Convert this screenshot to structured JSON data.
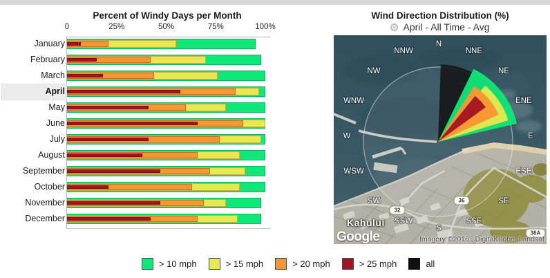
{
  "bar_chart": {
    "title": "Percent of Windy Days per Month",
    "tick_labels": [
      "0",
      "25%",
      "50%",
      "75%",
      "100%"
    ],
    "selected_month": "April"
  },
  "wind_map": {
    "title": "Wind Direction Distribution (%)",
    "selector_label": "April - All Time - Avg",
    "compass_labels": [
      "N",
      "NNE",
      "NE",
      "ENE",
      "E",
      "ESE",
      "SE",
      "SSE",
      "S",
      "SSW",
      "SW",
      "WSW",
      "W",
      "WNW",
      "NW",
      "NNW"
    ],
    "place_label": "Kahului",
    "road_labels": [
      "32",
      "36",
      "36A"
    ],
    "google_logo": "Google",
    "attribution": "Imagery ©2016 , DigitalGlobe, Landsat"
  },
  "legend": {
    "items": [
      {
        "label": "> 10 mph",
        "color": "#0ee878"
      },
      {
        "label": "> 15 mph",
        "color": "#e9e84e"
      },
      {
        "label": "> 20 mph",
        "color": "#fa9533"
      },
      {
        "label": "> 25 mph",
        "color": "#a31221"
      },
      {
        "label": "all",
        "color": "#111111"
      }
    ]
  },
  "chart_data": [
    {
      "type": "bar",
      "orientation": "horizontal",
      "overlaid": true,
      "title": "Percent of Windy Days per Month",
      "categories": [
        "January",
        "February",
        "March",
        "April",
        "May",
        "June",
        "July",
        "August",
        "September",
        "October",
        "November",
        "December"
      ],
      "series": [
        {
          "name": "> 10 mph",
          "color": "#0ee878",
          "values": [
            95,
            98,
            100,
            100,
            100,
            100,
            100,
            100,
            100,
            100,
            98,
            98
          ]
        },
        {
          "name": "> 15 mph",
          "color": "#e9e84e",
          "values": [
            55,
            70,
            76,
            97,
            80,
            100,
            98,
            87,
            90,
            87,
            80,
            86
          ]
        },
        {
          "name": "> 20 mph",
          "color": "#fa9533",
          "values": [
            21,
            42,
            44,
            85,
            60,
            89,
            77,
            66,
            72,
            63,
            69,
            66
          ]
        },
        {
          "name": "> 25 mph",
          "color": "#a31221",
          "values": [
            7,
            15,
            18,
            57,
            41,
            66,
            41,
            38,
            47,
            21,
            47,
            42
          ]
        }
      ],
      "xlim": [
        0,
        100
      ],
      "tick_labels": [
        "0",
        "25%",
        "50%",
        "75%",
        "100%"
      ],
      "highlighted_category": "April"
    },
    {
      "type": "wind-rose",
      "title": "Wind Direction Distribution (%)",
      "filter": "April - All Time - Avg",
      "dominant_direction": "NE-ENE",
      "petals": [
        {
          "name": "all",
          "color": "#141414",
          "angle_from": -88,
          "angle_to": -27,
          "radius": 112
        },
        {
          "name": "> 10 mph",
          "color": "#0ee878",
          "angle_from": -64,
          "angle_to": -13,
          "radius": 117
        },
        {
          "name": "> 15 mph",
          "color": "#e9e84e",
          "angle_from": -50,
          "angle_to": -17,
          "radius": 106
        },
        {
          "name": "> 20 mph",
          "color": "#fa9533",
          "angle_from": -57,
          "angle_to": -24,
          "radius": 96
        },
        {
          "name": "> 25 mph",
          "color": "#a31221",
          "angle_from": -51,
          "angle_to": -36,
          "radius": 85
        }
      ]
    }
  ]
}
